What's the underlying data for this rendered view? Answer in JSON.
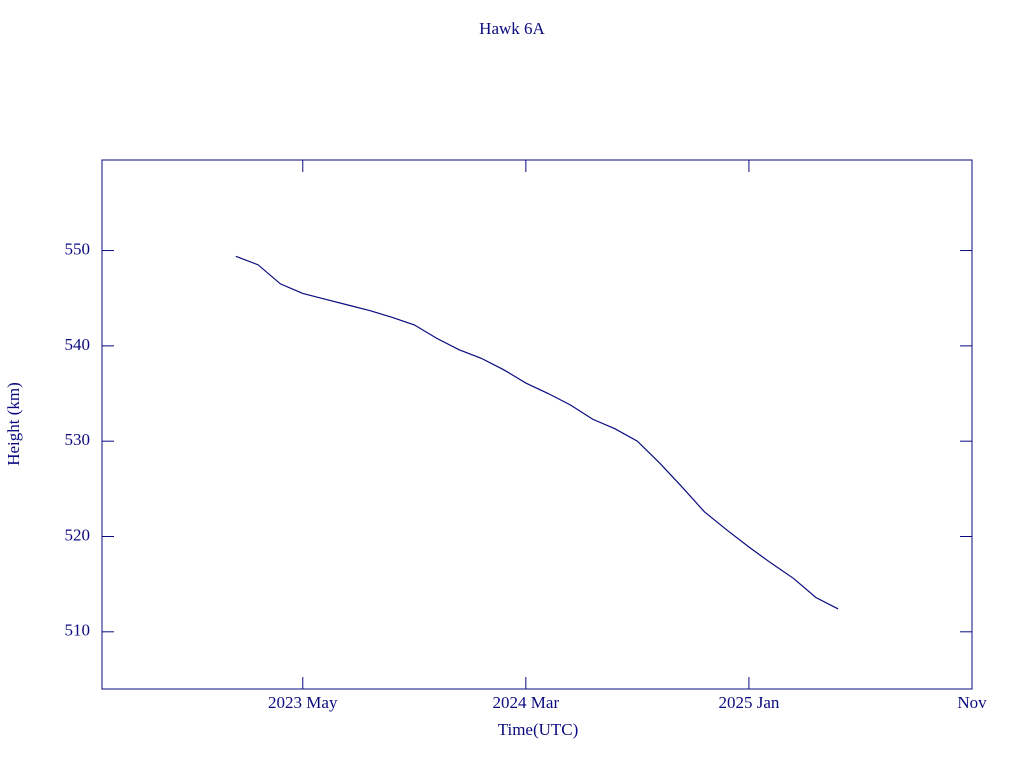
{
  "chart_data": {
    "type": "line",
    "title": "Hawk 6A",
    "xlabel": "Time(UTC)",
    "ylabel": "Height (km)",
    "color": "#0a0a80",
    "x": [
      "2023-02",
      "2023-03",
      "2023-04",
      "2023-05",
      "2023-06",
      "2023-07",
      "2023-08",
      "2023-09",
      "2023-10",
      "2023-11",
      "2023-12",
      "2024-01",
      "2024-02",
      "2024-03",
      "2024-04",
      "2024-05",
      "2024-06",
      "2024-07",
      "2024-08",
      "2024-09",
      "2024-10",
      "2024-11",
      "2024-12",
      "2025-01",
      "2025-02",
      "2025-03",
      "2025-04",
      "2025-05"
    ],
    "values": [
      549.4,
      548.5,
      546.5,
      545.5,
      544.9,
      544.3,
      543.7,
      543.0,
      542.2,
      540.8,
      539.6,
      538.7,
      537.5,
      536.1,
      535.0,
      533.8,
      532.3,
      531.3,
      530.0,
      527.7,
      525.2,
      522.6,
      520.7,
      518.9,
      517.2,
      515.6,
      513.6,
      512.4
    ],
    "xlim": [
      "2022-08",
      "2025-11"
    ],
    "xticks": [
      {
        "value": "2023-05",
        "label": "2023 May"
      },
      {
        "value": "2024-03",
        "label": "2024 Mar"
      },
      {
        "value": "2025-01",
        "label": "2025 Jan"
      },
      {
        "value": "2025-11",
        "label": "Nov"
      }
    ],
    "ylim": [
      504,
      559.5
    ],
    "yticks": [
      510,
      520,
      530,
      540,
      550
    ]
  }
}
